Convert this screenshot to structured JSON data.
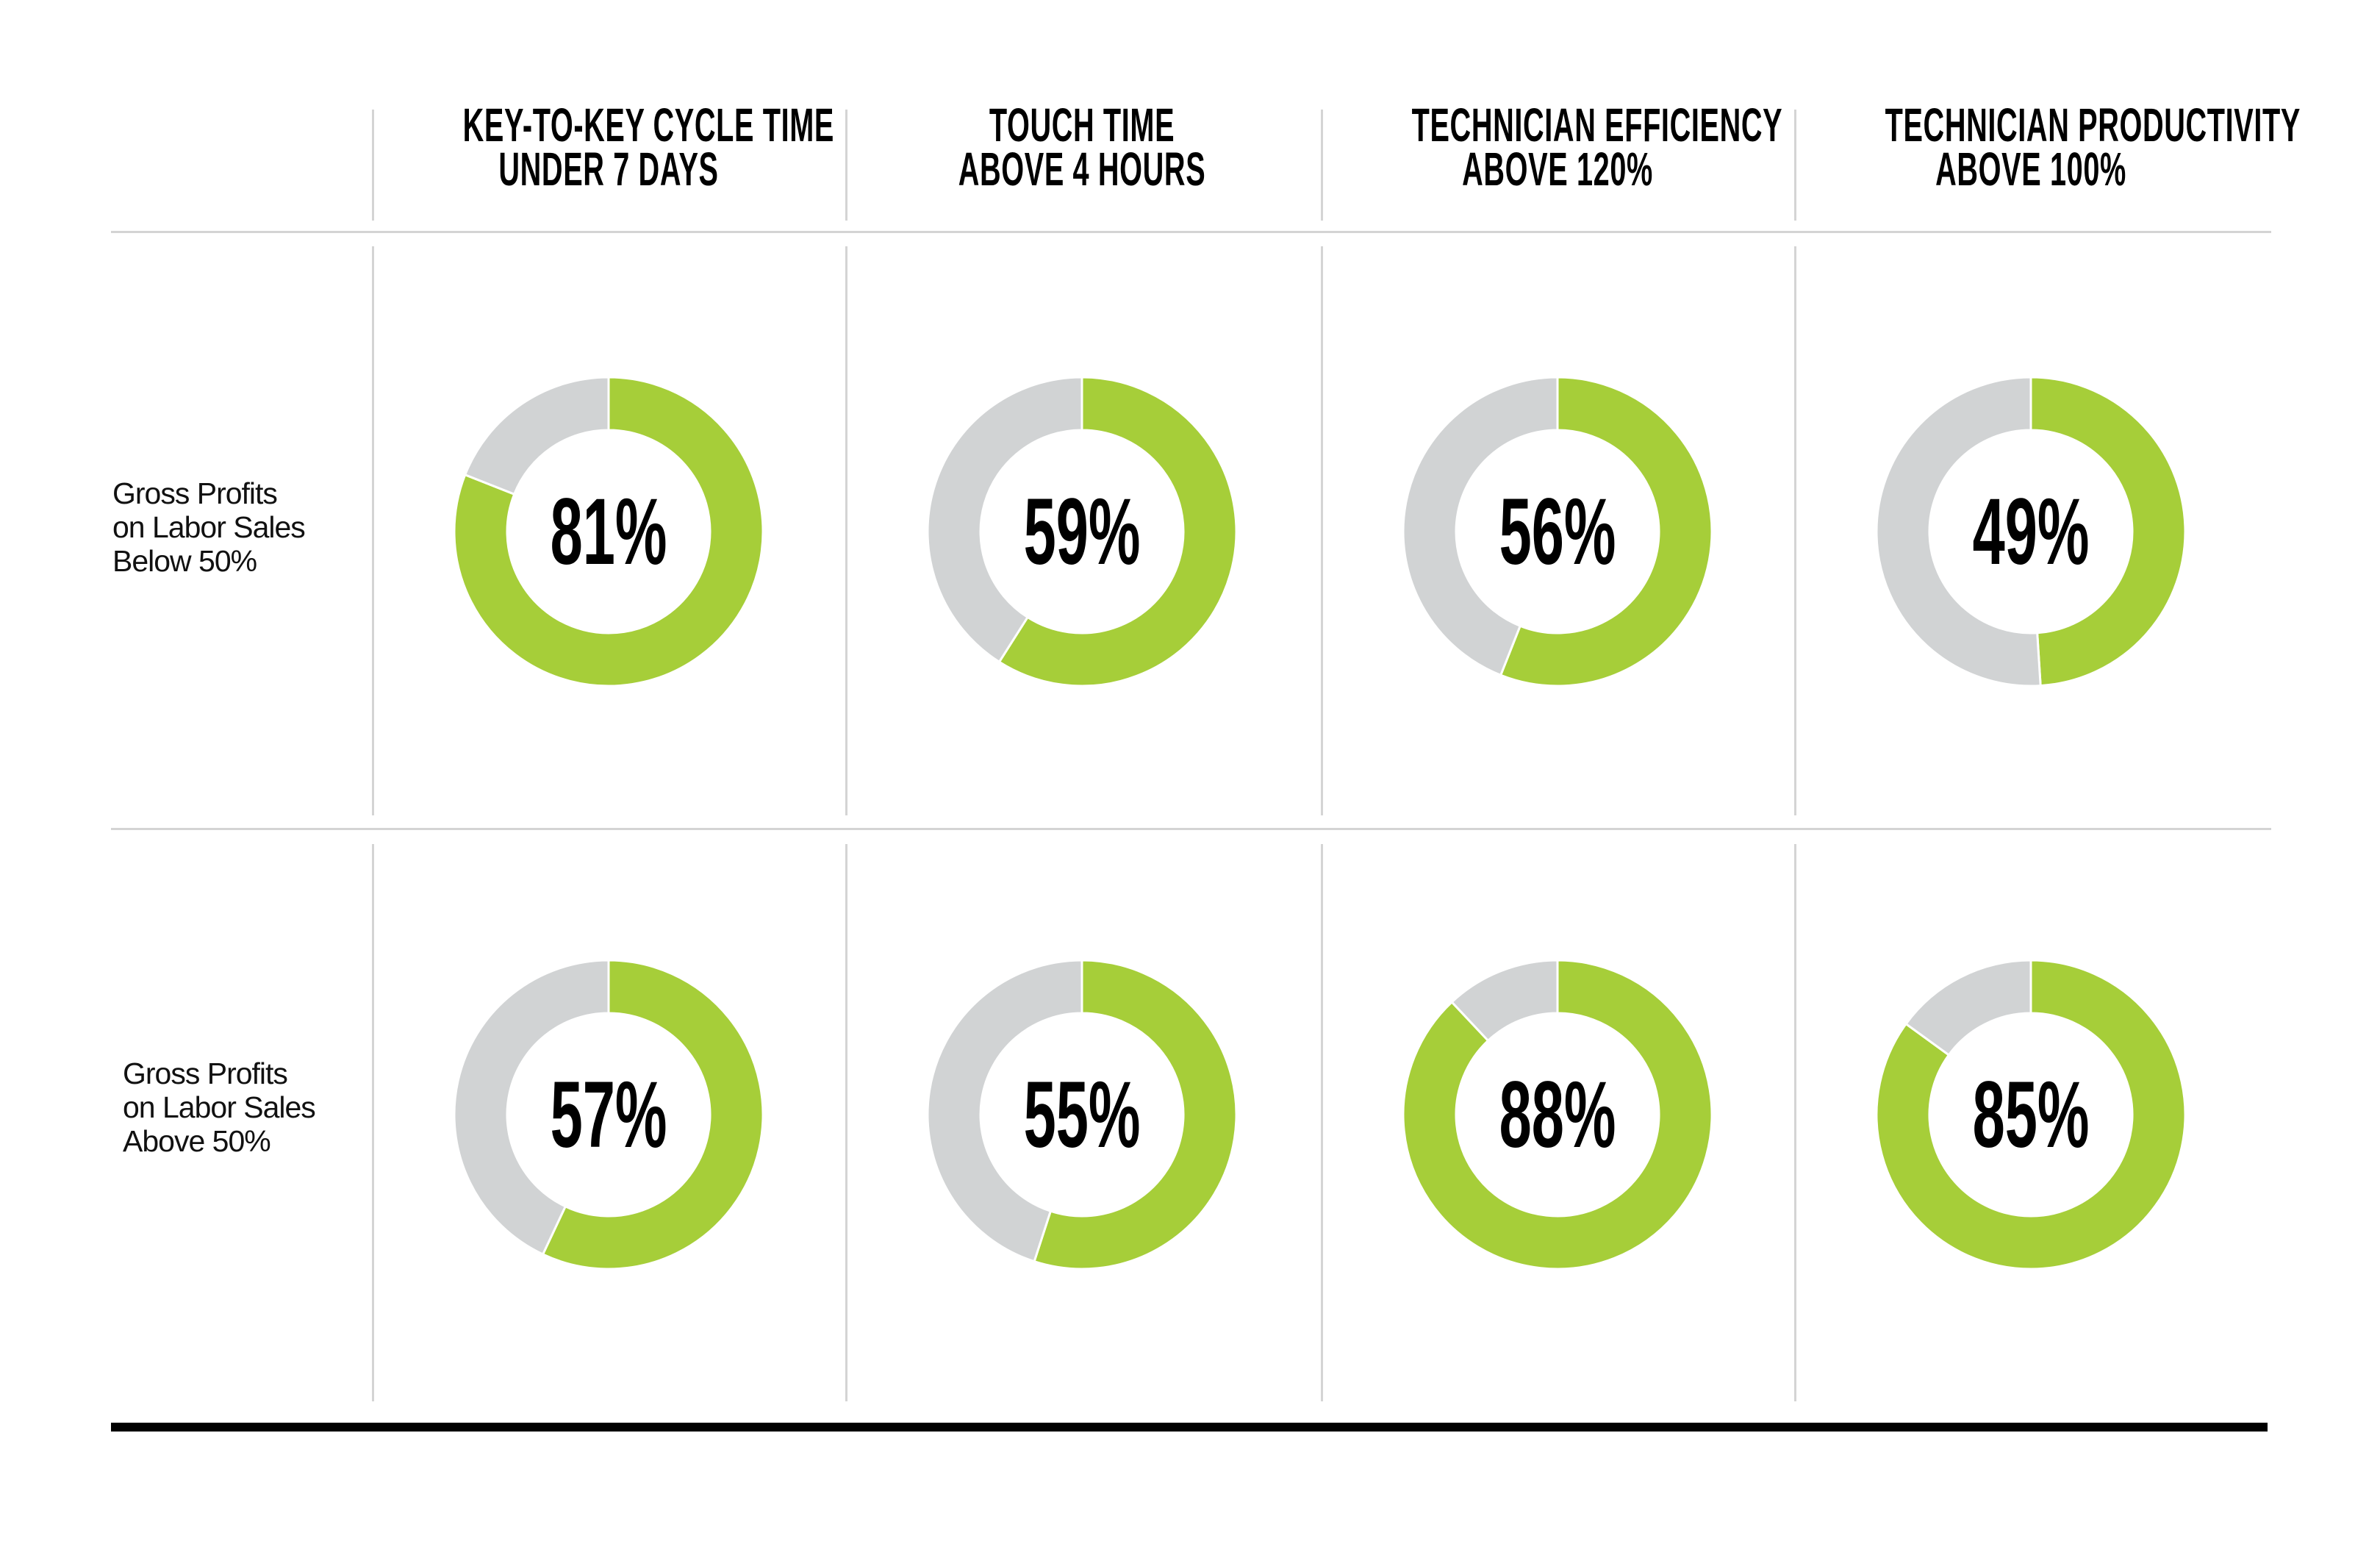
{
  "colors": {
    "achieved": "#A6CE39",
    "remainder": "#D1D3D4"
  },
  "chart_data": {
    "type": "donut-grid",
    "columns": [
      {
        "line1": "KEY-TO-KEY CYCLE TIME",
        "line2": "UNDER 7 DAYS"
      },
      {
        "line1": "TOUCH TIME",
        "line2": "ABOVE 4 HOURS"
      },
      {
        "line1": "TECHNICIAN EFFICIENCY",
        "line2": "ABOVE 120%"
      },
      {
        "line1": "TECHNICIAN PRODUCTIVITY",
        "line2": "ABOVE 100%"
      }
    ],
    "rows": [
      {
        "line1": "Gross Profits",
        "line2": "on Labor Sales",
        "line3": "Below 50%",
        "values": [
          81,
          59,
          56,
          49
        ],
        "labels": [
          "81%",
          "59%",
          "56%",
          "49%"
        ]
      },
      {
        "line1": "Gross Profits",
        "line2": "on Labor Sales",
        "line3": "Above 50%",
        "values": [
          57,
          55,
          88,
          85
        ],
        "labels": [
          "57%",
          "55%",
          "88%",
          "85%"
        ]
      }
    ]
  }
}
